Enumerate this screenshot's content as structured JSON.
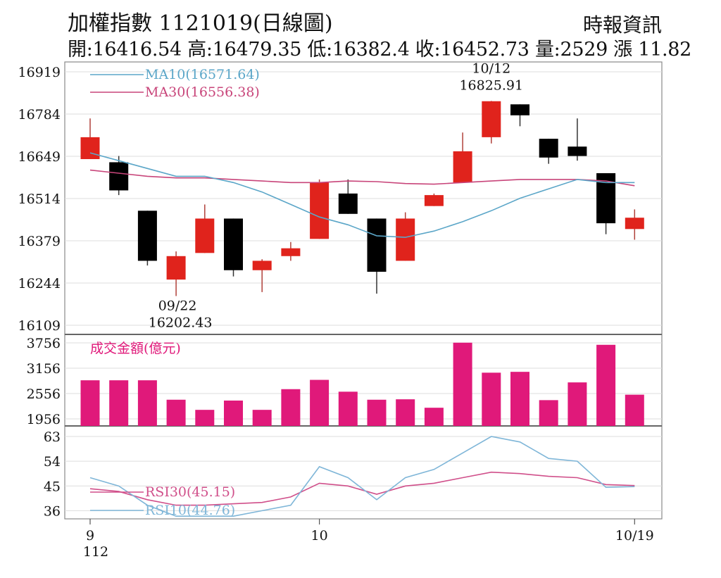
{
  "header": {
    "title": "加權指數 1121019(日線圖)",
    "source": "時報資訊",
    "ohlc": "開:16416.54 高:16479.35 低:16382.4 收:16452.73 量:2529 漲 11.82"
  },
  "colors": {
    "up": "#e0231c",
    "down": "#000000",
    "volume": "#e0197a",
    "ma10": "#5ba6c8",
    "ma30": "#c8457a",
    "rsi10": "#7fb6d8",
    "rsi30": "#d04f8a",
    "grid": "#dddddd"
  },
  "chart_data": [
    {
      "type": "candlestick",
      "legend": [
        {
          "key": "ma10",
          "label": "MA10(16571.64)"
        },
        {
          "key": "ma30",
          "label": "MA30(16556.38)"
        }
      ],
      "ylim": [
        16109,
        16919
      ],
      "yticks": [
        16919,
        16784,
        16649,
        16514,
        16379,
        16244,
        16109
      ],
      "candles": [
        {
          "open": 16640,
          "high": 16770,
          "low": 16640,
          "close": 16710
        },
        {
          "open": 16630,
          "high": 16650,
          "low": 16525,
          "close": 16540
        },
        {
          "open": 16475,
          "high": 16475,
          "low": 16300,
          "close": 16315
        },
        {
          "open": 16255,
          "high": 16345,
          "low": 16202.43,
          "close": 16330
        },
        {
          "open": 16340,
          "high": 16495,
          "low": 16340,
          "close": 16450
        },
        {
          "open": 16450,
          "high": 16450,
          "low": 16265,
          "close": 16285
        },
        {
          "open": 16285,
          "high": 16320,
          "low": 16215,
          "close": 16315
        },
        {
          "open": 16330,
          "high": 16375,
          "low": 16315,
          "close": 16355
        },
        {
          "open": 16385,
          "high": 16575,
          "low": 16385,
          "close": 16565
        },
        {
          "open": 16530,
          "high": 16575,
          "low": 16465,
          "close": 16465
        },
        {
          "open": 16450,
          "high": 16450,
          "low": 16210,
          "close": 16280
        },
        {
          "open": 16315,
          "high": 16470,
          "low": 16315,
          "close": 16450
        },
        {
          "open": 16490,
          "high": 16530,
          "low": 16490,
          "close": 16525
        },
        {
          "open": 16565,
          "high": 16725,
          "low": 16565,
          "close": 16665
        },
        {
          "open": 16710,
          "high": 16825.91,
          "low": 16690,
          "close": 16825
        },
        {
          "open": 16815,
          "high": 16815,
          "low": 16745,
          "close": 16780
        },
        {
          "open": 16705,
          "high": 16705,
          "low": 16625,
          "close": 16645
        },
        {
          "open": 16680,
          "high": 16770,
          "low": 16635,
          "close": 16650
        },
        {
          "open": 16595,
          "high": 16595,
          "low": 16400,
          "close": 16435
        },
        {
          "open": 16416.54,
          "high": 16479.35,
          "low": 16382.4,
          "close": 16452.73
        }
      ],
      "ma10": [
        16660,
        16635,
        16610,
        16585,
        16585,
        16565,
        16535,
        16495,
        16455,
        16430,
        16395,
        16390,
        16410,
        16440,
        16475,
        16515,
        16545,
        16575,
        16565,
        16565
      ],
      "ma30": [
        16605,
        16595,
        16585,
        16580,
        16580,
        16575,
        16570,
        16565,
        16565,
        16570,
        16568,
        16562,
        16560,
        16565,
        16570,
        16575,
        16575,
        16575,
        16570,
        16555
      ],
      "annotations": [
        {
          "index": 3,
          "date": "09/22",
          "value": "16202.43",
          "position": "below"
        },
        {
          "index": 14,
          "date": "10/12",
          "value": "16825.91",
          "position": "above"
        }
      ]
    },
    {
      "type": "bar",
      "title": "成交金額(億元)",
      "ylim": [
        1956,
        3756
      ],
      "yticks": [
        3756,
        3156,
        2556,
        1956
      ],
      "values": [
        2870,
        2870,
        2870,
        2410,
        2170,
        2390,
        2170,
        2660,
        2880,
        2600,
        2410,
        2420,
        2220,
        3760,
        3050,
        3070,
        2400,
        2820,
        3710,
        2529
      ]
    },
    {
      "type": "line",
      "legend": [
        {
          "key": "rsi30",
          "label": "RSI30(45.15)"
        },
        {
          "key": "rsi10",
          "label": "RSI10(44.76)"
        }
      ],
      "ylim": [
        32,
        63
      ],
      "yticks": [
        63,
        54,
        45,
        36
      ],
      "rsi10": [
        48,
        45,
        38,
        34,
        34,
        34,
        36,
        38,
        52,
        48,
        40,
        48,
        51,
        57,
        63,
        61,
        55,
        54,
        44.5,
        44.76
      ],
      "rsi30": [
        44,
        43,
        40,
        38,
        38,
        38.5,
        39,
        41,
        46,
        45,
        42,
        45,
        46,
        48,
        50,
        49.5,
        48.5,
        48,
        45.5,
        45.15
      ]
    }
  ],
  "xaxis": {
    "labels": [
      {
        "index": 0,
        "text": "9",
        "sub": "112"
      },
      {
        "index": 8,
        "text": "10",
        "sub": ""
      },
      {
        "index": 19,
        "text": "10/19",
        "sub": ""
      }
    ]
  }
}
